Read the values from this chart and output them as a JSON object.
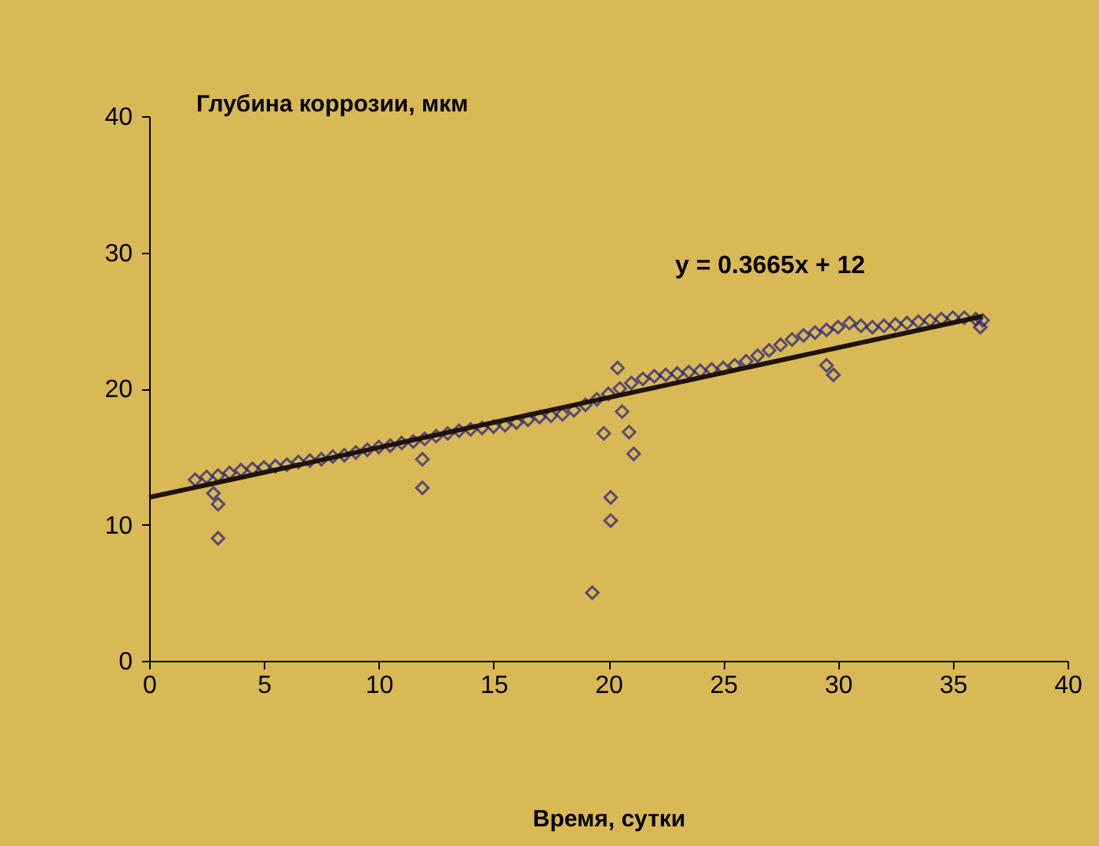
{
  "chart_data": {
    "type": "scatter",
    "xlabel": "Время, сутки",
    "ylabel": "Глубина коррозии, мкм",
    "xlim": [
      0,
      40
    ],
    "ylim": [
      0,
      40
    ],
    "xticks": [
      0,
      5,
      10,
      15,
      20,
      25,
      30,
      35,
      40
    ],
    "yticks": [
      0,
      10,
      20,
      30,
      40
    ],
    "grid": false,
    "annotations": [
      "y = 0.3665x + 12"
    ],
    "series": [
      {
        "color": "#221a80",
        "marker": "diamond",
        "x": [
          2.0,
          2.5,
          3.0,
          3.5,
          4.0,
          4.5,
          5.0,
          5.5,
          6.0,
          6.5,
          7.0,
          7.5,
          8.0,
          8.5,
          9.0,
          9.5,
          10.0,
          10.5,
          11.0,
          11.5,
          12.0,
          12.5,
          13.0,
          13.5,
          14.0,
          14.5,
          15.0,
          15.5,
          16.0,
          16.5,
          17.0,
          17.5,
          18.0,
          18.5,
          19.0,
          19.5,
          20.0,
          20.5,
          21.0,
          21.5,
          22.0,
          22.5,
          23.0,
          23.5,
          24.0,
          24.5,
          25.0,
          25.5,
          26.0,
          26.5,
          27.0,
          27.5,
          28.0,
          28.5,
          29.0,
          29.5,
          30.0,
          30.5,
          31.0,
          31.5,
          32.0,
          32.5,
          33.0,
          33.5,
          34.0,
          34.5,
          35.0,
          35.5,
          36.0,
          36.3,
          2.8,
          3.0,
          3.0,
          11.9,
          11.9,
          19.3,
          19.8,
          20.1,
          20.1,
          20.4,
          20.6,
          20.9,
          21.1,
          29.5,
          29.8,
          36.2
        ],
        "values": [
          13.3,
          13.5,
          13.6,
          13.8,
          14.0,
          14.1,
          14.2,
          14.3,
          14.4,
          14.6,
          14.7,
          14.8,
          15.0,
          15.1,
          15.3,
          15.5,
          15.7,
          15.8,
          16.0,
          16.1,
          16.3,
          16.5,
          16.7,
          16.9,
          17.0,
          17.1,
          17.2,
          17.3,
          17.5,
          17.7,
          17.9,
          18.0,
          18.1,
          18.4,
          18.8,
          19.2,
          19.6,
          20.0,
          20.4,
          20.7,
          20.9,
          21.0,
          21.1,
          21.2,
          21.3,
          21.4,
          21.5,
          21.7,
          22.0,
          22.4,
          22.8,
          23.2,
          23.6,
          23.9,
          24.1,
          24.3,
          24.5,
          24.8,
          24.6,
          24.5,
          24.6,
          24.7,
          24.8,
          24.9,
          25.0,
          25.1,
          25.2,
          25.2,
          25.1,
          25.0,
          12.3,
          11.5,
          9.0,
          14.8,
          12.7,
          5.0,
          16.7,
          12.0,
          10.3,
          21.5,
          18.3,
          16.8,
          15.2,
          21.7,
          21.0,
          24.5
        ]
      },
      {
        "type": "line",
        "marker": "none",
        "color": "#1f1208",
        "x": [
          0,
          36.3
        ],
        "values": [
          12,
          25.3
        ]
      }
    ]
  }
}
